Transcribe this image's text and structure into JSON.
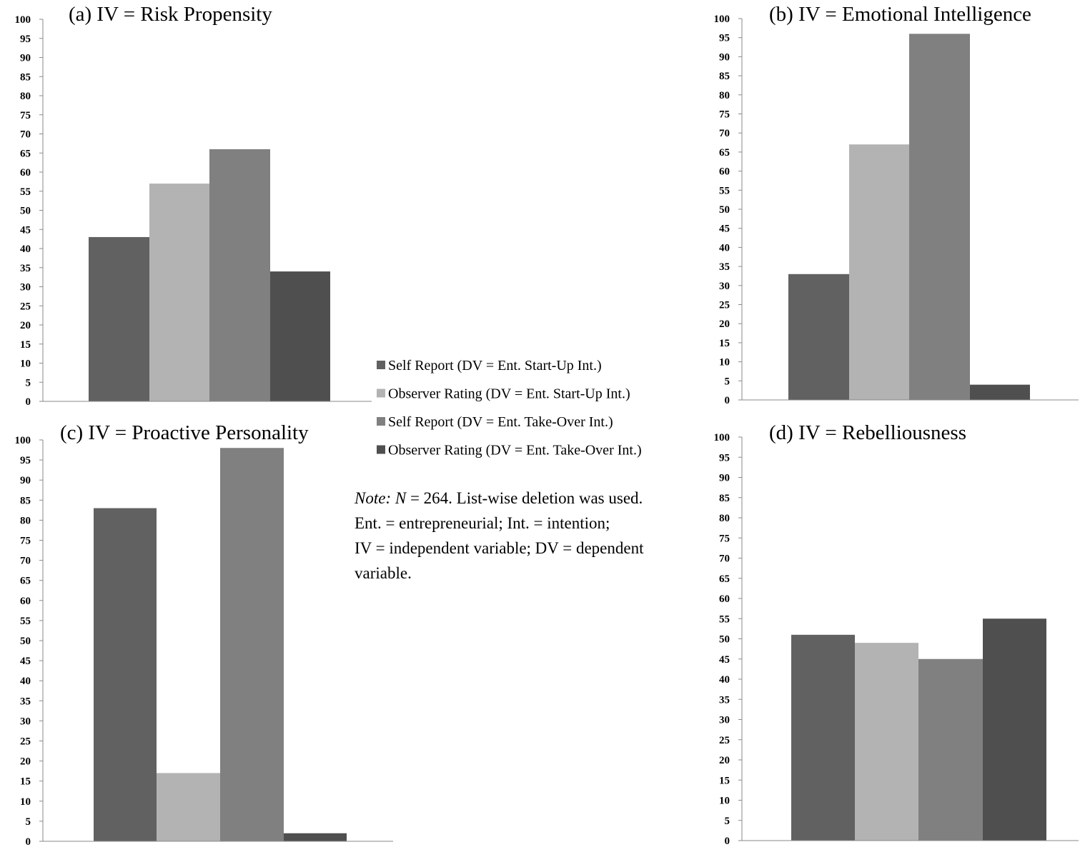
{
  "chart_data": [
    {
      "type": "bar",
      "title": "(a) IV = Risk Propensity",
      "ylim": [
        0,
        100
      ],
      "yticks": [
        0,
        5,
        10,
        15,
        20,
        25,
        30,
        35,
        40,
        45,
        50,
        55,
        60,
        65,
        70,
        75,
        80,
        85,
        90,
        95,
        100
      ],
      "grid": false,
      "series": [
        {
          "name": "Self Report (DV = Ent. Start-Up Int.)",
          "values": [
            43
          ]
        },
        {
          "name": "Observer Rating (DV = Ent. Start-Up Int.)",
          "values": [
            57
          ]
        },
        {
          "name": "Self Report (DV = Ent. Take-Over Int.)",
          "values": [
            66
          ]
        },
        {
          "name": "Observer Rating (DV = Ent. Take-Over Int.)",
          "values": [
            34
          ]
        }
      ]
    },
    {
      "type": "bar",
      "title": "(b) IV = Emotional Intelligence",
      "ylim": [
        0,
        100
      ],
      "yticks": [
        0,
        5,
        10,
        15,
        20,
        25,
        30,
        35,
        40,
        45,
        50,
        55,
        60,
        65,
        70,
        75,
        80,
        85,
        90,
        95,
        100
      ],
      "grid": false,
      "series": [
        {
          "name": "Self Report (DV = Ent. Start-Up Int.)",
          "values": [
            33
          ]
        },
        {
          "name": "Observer Rating (DV = Ent. Start-Up Int.)",
          "values": [
            67
          ]
        },
        {
          "name": "Self Report (DV = Ent. Take-Over Int.)",
          "values": [
            96
          ]
        },
        {
          "name": "Observer Rating (DV = Ent. Take-Over Int.)",
          "values": [
            4
          ]
        }
      ]
    },
    {
      "type": "bar",
      "title": "(c) IV = Proactive Personality",
      "ylim": [
        0,
        100
      ],
      "yticks": [
        0,
        5,
        10,
        15,
        20,
        25,
        30,
        35,
        40,
        45,
        50,
        55,
        60,
        65,
        70,
        75,
        80,
        85,
        90,
        95,
        100
      ],
      "grid": false,
      "series": [
        {
          "name": "Self Report (DV = Ent. Start-Up Int.)",
          "values": [
            83
          ]
        },
        {
          "name": "Observer Rating (DV = Ent. Start-Up Int.)",
          "values": [
            17
          ]
        },
        {
          "name": "Self Report (DV = Ent. Take-Over Int.)",
          "values": [
            98
          ]
        },
        {
          "name": "Observer Rating (DV = Ent. Take-Over Int.)",
          "values": [
            2
          ]
        }
      ]
    },
    {
      "type": "bar",
      "title": "(d) IV = Rebelliousness",
      "ylim": [
        0,
        100
      ],
      "yticks": [
        0,
        5,
        10,
        15,
        20,
        25,
        30,
        35,
        40,
        45,
        50,
        55,
        60,
        65,
        70,
        75,
        80,
        85,
        90,
        95,
        100
      ],
      "grid": false,
      "series": [
        {
          "name": "Self Report (DV = Ent. Start-Up Int.)",
          "values": [
            51
          ]
        },
        {
          "name": "Observer Rating (DV = Ent. Start-Up Int.)",
          "values": [
            49
          ]
        },
        {
          "name": "Self Report (DV = Ent. Take-Over Int.)",
          "values": [
            45
          ]
        },
        {
          "name": "Observer Rating (DV = Ent. Take-Over Int.)",
          "values": [
            55
          ]
        }
      ]
    }
  ],
  "legend": {
    "placement": "center",
    "entries": [
      {
        "label": "Self Report (DV = Ent. Start-Up Int.)",
        "color": "#616161"
      },
      {
        "label": "Observer Rating (DV = Ent. Start-Up Int.)",
        "color": "#b3b3b3"
      },
      {
        "label": "Self Report (DV = Ent. Take-Over Int.)",
        "color": "#808080"
      },
      {
        "label": "Observer Rating (DV = Ent. Take-Over Int.)",
        "color": "#4f4f4f"
      }
    ]
  },
  "note": {
    "lead": "Note: N",
    "lines": [
      " = 264. List-wise deletion was used.",
      "Ent. = entrepreneurial; Int. = intention;",
      "IV = independent variable; DV = dependent",
      "variable."
    ]
  }
}
